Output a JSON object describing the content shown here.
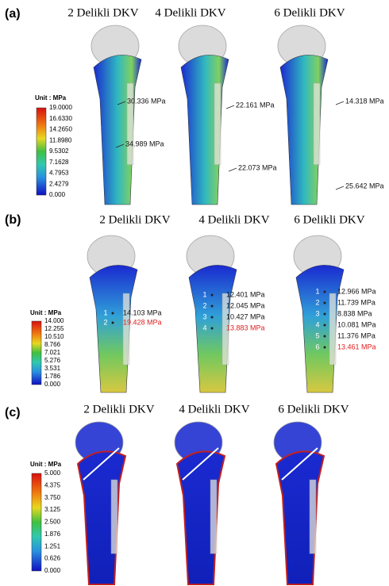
{
  "panels": [
    {
      "label": "(a)",
      "titles": [
        "2 Delikli DKV",
        "4 Delikli DKV",
        "6 Delikli DKV"
      ],
      "unit": "Unit : MPa",
      "scale": [
        "19.0000",
        "16.6330",
        "14.2650",
        "11.8980",
        "9.5302",
        "7.1628",
        "4.7953",
        "2.4279",
        "0.000"
      ],
      "models": [
        {
          "annotations": [
            {
              "text": "30.336 MPa"
            },
            {
              "text": "34.989 MPa"
            }
          ]
        },
        {
          "annotations": [
            {
              "text": "22.161 MPa"
            },
            {
              "text": "22.073 MPa"
            }
          ]
        },
        {
          "annotations": [
            {
              "text": "14.318 MPa"
            },
            {
              "text": "25.642 MPa"
            }
          ]
        }
      ]
    },
    {
      "label": "(b)",
      "titles": [
        "2 Delikli DKV",
        "4 Delikli DKV",
        "6 Delikli DKV"
      ],
      "unit": "Unit : MPa",
      "scale": [
        "14.000",
        "12.255",
        "10.510",
        "8.766",
        "7.021",
        "5.276",
        "3.531",
        "1.786",
        "0.000"
      ],
      "models": [
        {
          "annotations": [
            {
              "marker": "1",
              "text": "14.103 MPa"
            },
            {
              "marker": "2",
              "text": "19.428 MPa",
              "color": "#e02020"
            }
          ]
        },
        {
          "annotations": [
            {
              "marker": "1",
              "text": "12.401 MPa"
            },
            {
              "marker": "2",
              "text": "12.045 MPa"
            },
            {
              "marker": "3",
              "text": "10.427 MPa"
            },
            {
              "marker": "4",
              "text": "13.883 MPa",
              "color": "#e02020"
            }
          ]
        },
        {
          "annotations": [
            {
              "marker": "1",
              "text": "12.966 MPa"
            },
            {
              "marker": "2",
              "text": "11.739 MPa"
            },
            {
              "marker": "3",
              "text": "8.838 MPa"
            },
            {
              "marker": "4",
              "text": "10.081 MPa"
            },
            {
              "marker": "5",
              "text": "11.376 MPa"
            },
            {
              "marker": "6",
              "text": "13.461 MPa",
              "color": "#e02020"
            }
          ]
        }
      ]
    },
    {
      "label": "(c)",
      "titles": [
        "2 Delikli DKV",
        "4 Delikli DKV",
        "6 Delikli DKV"
      ],
      "unit": "Unit : MPa",
      "scale": [
        "5.000",
        "4.375",
        "3.750",
        "3.125",
        "2.500",
        "1.876",
        "1.251",
        "0.626",
        "0.000"
      ],
      "models": [
        {
          "annotations": []
        },
        {
          "annotations": []
        },
        {
          "annotations": []
        }
      ]
    }
  ]
}
